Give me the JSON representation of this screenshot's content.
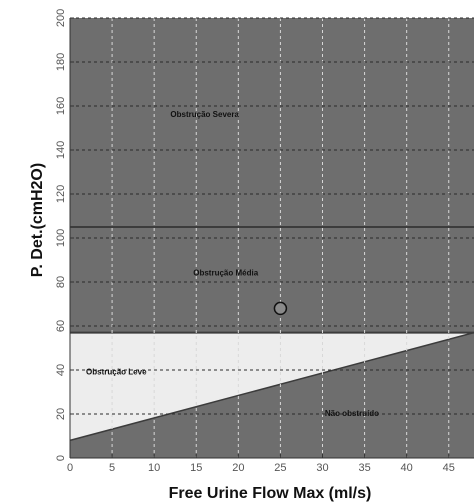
{
  "chart_data": {
    "type": "scatter",
    "title": "",
    "xlabel": "Free Urine Flow Max (ml/s)",
    "ylabel": "P. Det.(cmH2O)",
    "xlim": [
      0,
      48
    ],
    "ylim": [
      0,
      200
    ],
    "grid": true,
    "x_ticks": [
      "0",
      "5",
      "10",
      "15",
      "20",
      "25",
      "30",
      "35",
      "40",
      "45"
    ],
    "y_ticks": [
      "0",
      "20",
      "40",
      "60",
      "80",
      "100",
      "120",
      "140",
      "160",
      "180",
      "200"
    ],
    "regions": [
      {
        "name": "Obstrução Severa",
        "y_range": [
          105,
          200
        ],
        "color": "#6e6e6e"
      },
      {
        "name": "Obstrução Média",
        "y_range": [
          57,
          105
        ],
        "color": "#6e6e6e"
      },
      {
        "name": "Obstrução Leve",
        "boundary": "above line from (0, 8) to (48, 57)",
        "color": "#ededed"
      },
      {
        "name": "Não obstruído",
        "boundary": "below line from (0, 8) to (48, 57)",
        "color": "#6e6e6e"
      }
    ],
    "boundary_line": [
      [
        0,
        8
      ],
      [
        48,
        57
      ]
    ],
    "points": [
      {
        "x": 25,
        "y": 68
      }
    ]
  }
}
